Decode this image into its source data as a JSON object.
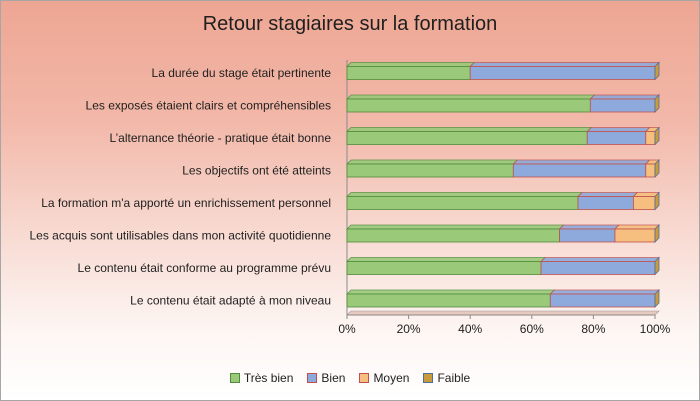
{
  "chart_data": {
    "type": "bar",
    "orientation": "horizontal",
    "stacked": "percent",
    "title": "Retour stagiaires sur la formation",
    "categories": [
      "La durée du stage était pertinente",
      "Les exposés étaient clairs et compréhensibles",
      "L’alternance théorie - pratique était bonne",
      "Les objectifs ont été atteints",
      "La formation m'a apporté un enrichissement personnel",
      "Les acquis sont utilisables dans mon activité quotidienne",
      "Le contenu était conforme au programme prévu",
      "Le contenu était adapté à mon niveau"
    ],
    "series": [
      {
        "name": "Très bien",
        "color": "#9bc97a",
        "edge": "#4f8c3a",
        "values": [
          40,
          79,
          78,
          54,
          75,
          69,
          63,
          66
        ]
      },
      {
        "name": "Bien",
        "color": "#8ea9db",
        "edge": "#c0504d",
        "values": [
          60,
          21,
          19,
          43,
          18,
          18,
          37,
          34
        ]
      },
      {
        "name": "Moyen",
        "color": "#f6bf7f",
        "edge": "#c0504d",
        "values": [
          0,
          0,
          3,
          3,
          7,
          13,
          0,
          0
        ]
      },
      {
        "name": "Faible",
        "color": "#c89b3c",
        "edge": "#4f6f9f",
        "values": [
          0,
          0,
          0,
          0,
          0,
          0,
          0,
          0
        ]
      }
    ],
    "xlim": [
      0,
      100
    ],
    "x_ticks": [
      "0%",
      "20%",
      "40%",
      "60%",
      "80%",
      "100%"
    ],
    "legend_position": "bottom",
    "grid": false
  }
}
